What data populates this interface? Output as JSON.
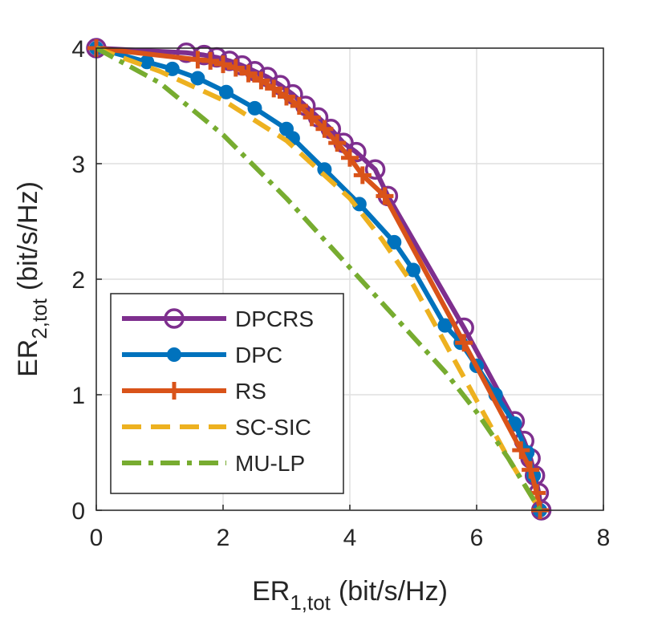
{
  "chart_data": {
    "type": "line",
    "x_label": {
      "text": "ER",
      "subscript": "1,tot",
      "suffix": "(bit/s/Hz)"
    },
    "y_label": {
      "text": "ER",
      "subscript": "2,tot",
      "suffix": "(bit/s/Hz)"
    },
    "xlim": [
      0,
      8
    ],
    "xticks": [
      0,
      2,
      4,
      6,
      8
    ],
    "ylim": [
      0,
      4
    ],
    "yticks": [
      0,
      1,
      2,
      3,
      4
    ],
    "grid": true,
    "legend_position": "lower-left",
    "series": [
      {
        "name": "DPCRS",
        "color": "#7E2F8E",
        "marker": "circle",
        "line_style": "solid",
        "x": [
          0,
          1.42,
          1.7,
          1.9,
          2.1,
          2.3,
          2.5,
          2.7,
          2.9,
          3.1,
          3.3,
          3.5,
          3.7,
          3.9,
          4.1,
          4.4,
          4.6,
          5.8,
          6.6,
          6.75,
          6.85,
          6.92,
          6.98,
          7.02
        ],
        "values": [
          4,
          3.96,
          3.94,
          3.92,
          3.89,
          3.85,
          3.8,
          3.75,
          3.68,
          3.6,
          3.5,
          3.4,
          3.3,
          3.18,
          3.1,
          2.95,
          2.72,
          1.58,
          0.77,
          0.6,
          0.45,
          0.3,
          0.15,
          0
        ]
      },
      {
        "name": "DPC",
        "color": "#0072BD",
        "marker": "dot",
        "line_style": "solid",
        "x": [
          0,
          0.8,
          1.2,
          1.6,
          2.05,
          2.5,
          3.0,
          3.1,
          3.6,
          4.15,
          4.7,
          5.0,
          5.5,
          5.75,
          6.0,
          6.3,
          6.6,
          6.8,
          6.9,
          7.0
        ],
        "values": [
          4,
          3.88,
          3.82,
          3.74,
          3.62,
          3.48,
          3.3,
          3.22,
          2.95,
          2.65,
          2.32,
          2.08,
          1.6,
          1.45,
          1.25,
          1.0,
          0.75,
          0.5,
          0.3,
          0
        ]
      },
      {
        "name": "RS",
        "color": "#D95319",
        "marker": "plus",
        "line_style": "solid",
        "x": [
          0,
          1.6,
          1.8,
          2.0,
          2.2,
          2.4,
          2.6,
          2.8,
          3.0,
          3.2,
          3.4,
          3.6,
          3.8,
          4.0,
          4.2,
          4.55,
          5.8,
          6.7,
          6.85,
          6.95,
          7.0
        ],
        "values": [
          4,
          3.9,
          3.89,
          3.86,
          3.83,
          3.78,
          3.72,
          3.65,
          3.58,
          3.5,
          3.4,
          3.3,
          3.18,
          3.05,
          2.9,
          2.72,
          1.45,
          0.52,
          0.35,
          0.15,
          0
        ]
      },
      {
        "name": "SC-SIC",
        "color": "#EDB120",
        "marker": "none",
        "line_style": "dashed",
        "x": [
          0,
          1,
          2,
          3,
          4,
          4.5,
          5,
          5.5,
          6,
          6.5,
          7.0
        ],
        "values": [
          4,
          3.8,
          3.55,
          3.2,
          2.7,
          2.35,
          1.95,
          1.45,
          0.95,
          0.45,
          0
        ]
      },
      {
        "name": "MU-LP",
        "color": "#77AC30",
        "marker": "none",
        "line_style": "dash-dot",
        "x": [
          0,
          1,
          2,
          3,
          4,
          5,
          5.5,
          6,
          6.5,
          7.0
        ],
        "values": [
          4,
          3.7,
          3.25,
          2.7,
          2.1,
          1.5,
          1.2,
          0.85,
          0.45,
          0
        ]
      }
    ]
  }
}
